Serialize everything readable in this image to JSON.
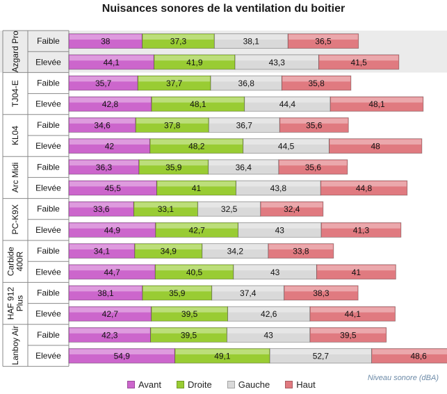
{
  "chart_data": {
    "type": "bar",
    "orientation": "horizontal",
    "stacked": true,
    "title": "Nuisances sonores de la ventilation du boitier",
    "xlabel": "Niveau sonore (dBA)",
    "ylabel": "",
    "xlim": [
      0,
      210
    ],
    "legend_position": "bottom",
    "grid": false,
    "groups": [
      {
        "name": "Azgard Pro",
        "label_lines": [
          "Azgard Pro"
        ],
        "rows": [
          "Faible",
          "Elevée"
        ]
      },
      {
        "name": "TJ04-E",
        "label_lines": [
          "TJ04-E"
        ],
        "rows": [
          "Faible",
          "Elevée"
        ]
      },
      {
        "name": "KL04",
        "label_lines": [
          "KL04"
        ],
        "rows": [
          "Faible",
          "Elevée"
        ]
      },
      {
        "name": "Arc Midi",
        "label_lines": [
          "Arc Midi"
        ],
        "rows": [
          "Faible",
          "Elevée"
        ]
      },
      {
        "name": "PC-K9X",
        "label_lines": [
          "PC-K9X"
        ],
        "rows": [
          "Faible",
          "Elevée"
        ]
      },
      {
        "name": "Carbide 400R",
        "label_lines": [
          "Carbide",
          "400R"
        ],
        "rows": [
          "Faible",
          "Elevée"
        ]
      },
      {
        "name": "HAF 912 Plus",
        "label_lines": [
          "HAF 912",
          "Plus"
        ],
        "rows": [
          "Faible",
          "Elevée"
        ]
      },
      {
        "name": "Lanboy Air",
        "label_lines": [
          "Lanboy Air"
        ],
        "rows": [
          "Faible",
          "Elevée"
        ]
      }
    ],
    "series": [
      {
        "name": "Avant",
        "color": "#cc66cc",
        "values": [
          38,
          44.1,
          35.7,
          42.8,
          34.6,
          42,
          36.3,
          45.5,
          33.6,
          44.9,
          34.1,
          44.7,
          38.1,
          42.7,
          42.3,
          54.9
        ]
      },
      {
        "name": "Droite",
        "color": "#99cc33",
        "values": [
          37.3,
          41.9,
          37.7,
          48.1,
          37.8,
          48.2,
          35.9,
          41,
          33.1,
          42.7,
          34.9,
          40.5,
          35.9,
          39.5,
          39.5,
          49.1
        ]
      },
      {
        "name": "Gauche",
        "color": "#d9d9d9",
        "values": [
          38.1,
          43.3,
          36.8,
          44.4,
          36.7,
          44.5,
          36.4,
          43.8,
          32.5,
          43,
          34.2,
          43,
          37.4,
          42.6,
          43,
          52.7
        ]
      },
      {
        "name": "Haut",
        "color": "#e07a80",
        "values": [
          36.5,
          41.5,
          35.8,
          48.1,
          35.6,
          48,
          35.6,
          44.8,
          32.4,
          41.3,
          33.8,
          41,
          38.3,
          44.1,
          39.5,
          48.6
        ]
      }
    ],
    "value_labels": [
      [
        "38",
        "37,3",
        "38,1",
        "36,5"
      ],
      [
        "44,1",
        "41,9",
        "43,3",
        "41,5"
      ],
      [
        "35,7",
        "37,7",
        "36,8",
        "35,8"
      ],
      [
        "42,8",
        "48,1",
        "44,4",
        "48,1"
      ],
      [
        "34,6",
        "37,8",
        "36,7",
        "35,6"
      ],
      [
        "42",
        "48,2",
        "44,5",
        "48"
      ],
      [
        "36,3",
        "35,9",
        "36,4",
        "35,6"
      ],
      [
        "45,5",
        "41",
        "43,8",
        "44,8"
      ],
      [
        "33,6",
        "33,1",
        "32,5",
        "32,4"
      ],
      [
        "44,9",
        "42,7",
        "43",
        "41,3"
      ],
      [
        "34,1",
        "34,9",
        "34,2",
        "33,8"
      ],
      [
        "44,7",
        "40,5",
        "43",
        "41"
      ],
      [
        "38,1",
        "35,9",
        "37,4",
        "38,3"
      ],
      [
        "42,7",
        "39,5",
        "42,6",
        "44,1"
      ],
      [
        "42,3",
        "39,5",
        "43",
        "39,5"
      ],
      [
        "54,9",
        "49,1",
        "52,7",
        "48,6"
      ]
    ],
    "highlight_group": "Azgard Pro",
    "highlight_color": "#ebebeb"
  }
}
